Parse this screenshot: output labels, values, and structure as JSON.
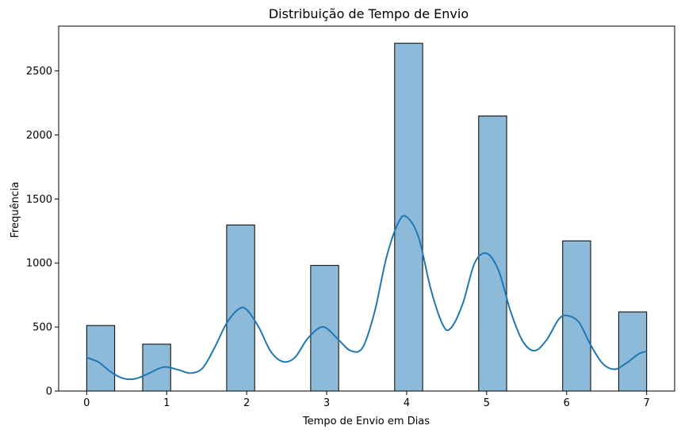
{
  "chart_data": {
    "type": "bar",
    "title": "Distribuição de Tempo de Envio",
    "xlabel": "Tempo de Envio em Dias",
    "ylabel": "Frequência",
    "xlim": [
      -0.35,
      7.35
    ],
    "ylim": [
      0,
      2850
    ],
    "xticks": [
      0,
      1,
      2,
      3,
      4,
      5,
      6,
      7
    ],
    "yticks": [
      0,
      500,
      1000,
      1500,
      2000,
      2500
    ],
    "bar_color": "#8ebada",
    "bar_edge_color": "#000000",
    "kde_color": "#1f77b4",
    "grid": false,
    "bars": [
      {
        "x0": 0.0,
        "x1": 0.35,
        "value": 512
      },
      {
        "x0": 0.7,
        "x1": 1.05,
        "value": 366
      },
      {
        "x0": 1.75,
        "x1": 2.1,
        "value": 1297
      },
      {
        "x0": 2.8,
        "x1": 3.15,
        "value": 981
      },
      {
        "x0": 3.85,
        "x1": 4.2,
        "value": 2716
      },
      {
        "x0": 4.9,
        "x1": 5.25,
        "value": 2148
      },
      {
        "x0": 5.95,
        "x1": 6.3,
        "value": 1173
      },
      {
        "x0": 6.65,
        "x1": 7.0,
        "value": 618
      }
    ],
    "kde": {
      "x": [
        0.0,
        0.15,
        0.3,
        0.45,
        0.6,
        0.75,
        0.9,
        1.0,
        1.15,
        1.3,
        1.45,
        1.6,
        1.75,
        1.9,
        2.0,
        2.15,
        2.3,
        2.45,
        2.6,
        2.75,
        2.9,
        3.0,
        3.15,
        3.3,
        3.45,
        3.6,
        3.75,
        3.9,
        4.0,
        4.15,
        4.3,
        4.45,
        4.55,
        4.7,
        4.85,
        5.0,
        5.15,
        5.3,
        5.45,
        5.6,
        5.75,
        5.9,
        6.0,
        6.15,
        6.3,
        6.45,
        6.6,
        6.75,
        6.9,
        7.0
      ],
      "y": [
        262,
        225,
        150,
        100,
        95,
        130,
        175,
        188,
        165,
        140,
        180,
        340,
        530,
        640,
        635,
        500,
        310,
        230,
        260,
        400,
        490,
        490,
        400,
        315,
        340,
        620,
        1050,
        1320,
        1360,
        1200,
        800,
        520,
        490,
        680,
        1000,
        1075,
        940,
        620,
        390,
        315,
        400,
        560,
        590,
        540,
        360,
        215,
        170,
        220,
        290,
        310
      ]
    }
  }
}
